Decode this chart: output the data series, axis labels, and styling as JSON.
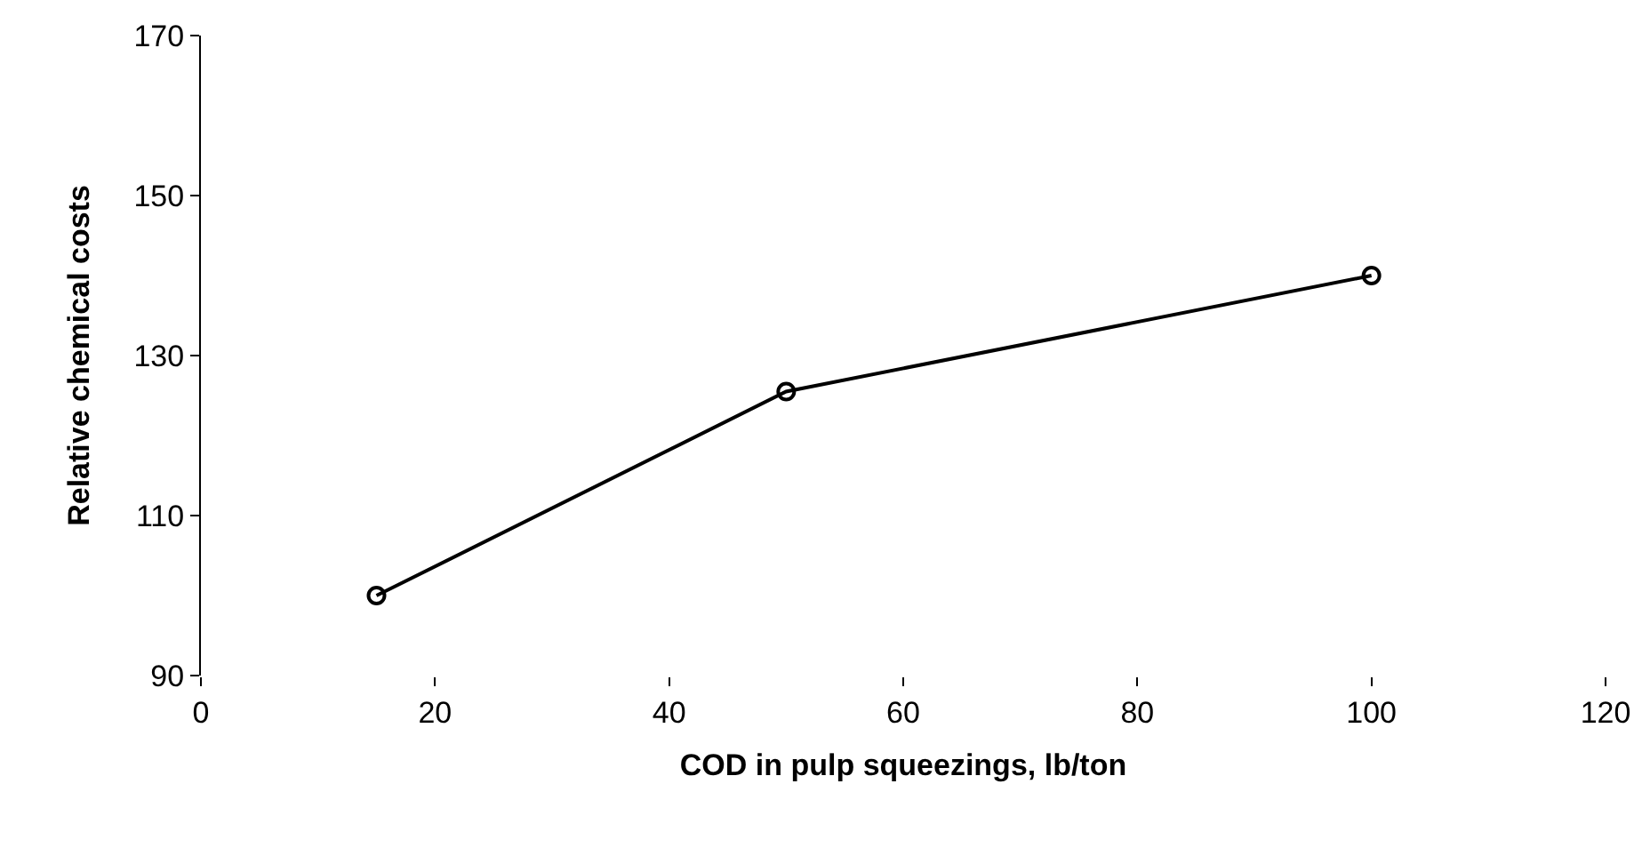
{
  "chart_data": {
    "type": "line",
    "xlabel": "COD in pulp squeezings, lb/ton",
    "ylabel": "Relative chemical costs",
    "x": [
      15,
      50,
      100
    ],
    "series": [
      {
        "color": "#000000",
        "values": [
          100,
          125.5,
          140
        ]
      }
    ],
    "xlim": [
      0,
      120
    ],
    "xticks": [
      0,
      20,
      40,
      60,
      80,
      100,
      120
    ],
    "ylim": [
      90,
      170
    ],
    "yticks": [
      90,
      110,
      130,
      150,
      170
    ],
    "marker": "circle",
    "line_style": "solid"
  }
}
